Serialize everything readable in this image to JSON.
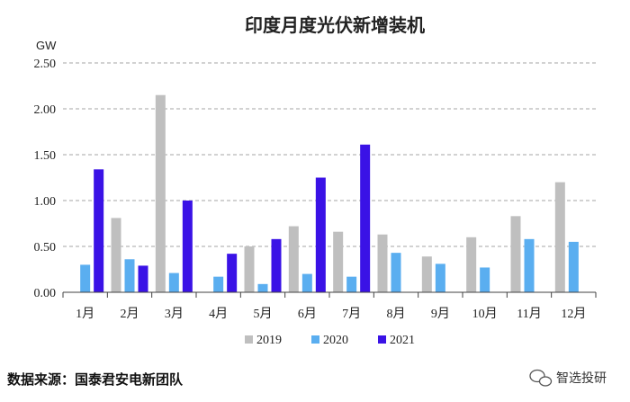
{
  "chart_data": {
    "type": "bar",
    "title": "印度月度光伏新增装机",
    "ylabel": "GW",
    "ylim": [
      0,
      2.5
    ],
    "yticks": [
      "0.00",
      "0.50",
      "1.00",
      "1.50",
      "2.00",
      "2.50"
    ],
    "grid": true,
    "legend_position": "bottom",
    "categories": [
      "1月",
      "2月",
      "3月",
      "4月",
      "5月",
      "6月",
      "7月",
      "8月",
      "9月",
      "10月",
      "11月",
      "12月"
    ],
    "series": [
      {
        "name": "2019",
        "color": "#bfbfbf",
        "values": [
          null,
          0.81,
          2.15,
          null,
          0.5,
          0.72,
          0.66,
          0.63,
          0.39,
          0.6,
          0.83,
          1.2
        ]
      },
      {
        "name": "2020",
        "color": "#5aaef0",
        "values": [
          0.3,
          0.36,
          0.21,
          0.17,
          0.09,
          0.2,
          0.17,
          0.43,
          0.31,
          0.27,
          0.58,
          0.55
        ]
      },
      {
        "name": "2021",
        "color": "#3a12e6",
        "values": [
          1.34,
          0.29,
          1.0,
          0.42,
          0.58,
          1.25,
          1.61,
          null,
          null,
          null,
          null,
          null
        ]
      }
    ]
  },
  "footer": {
    "source": "数据来源：国泰君安电新团队",
    "brand": "智选投研",
    "brand_icon": "wechat-icon"
  }
}
